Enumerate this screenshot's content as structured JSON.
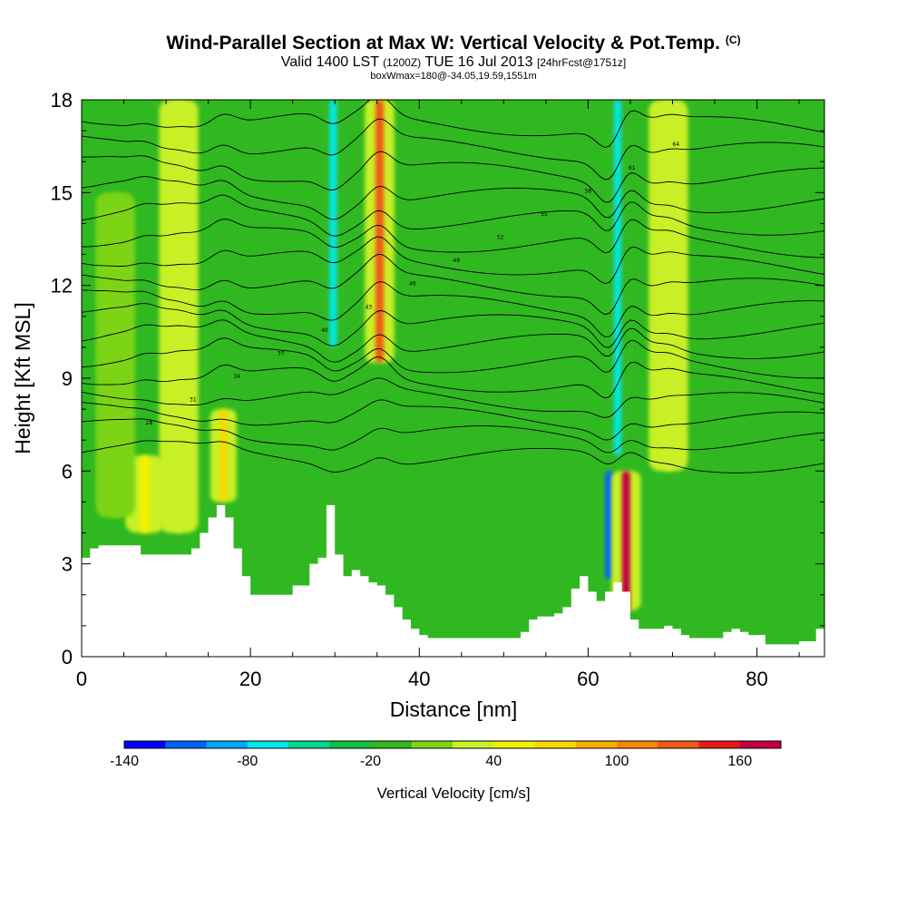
{
  "title": {
    "main": "Wind-Parallel Section at Max W: Vertical Velocity & Pot.Temp.",
    "copyright": "(C)",
    "valid_prefix": "Valid 1400 LST",
    "utc": "(1200Z)",
    "valid_date": "TUE 16 Jul 2013",
    "forecast": "[24hrFcst@1751z]",
    "box": "boxWmax=180@-34.05,19.59,1551m"
  },
  "chart_data": {
    "type": "heatmap",
    "xlabel": "Distance [nm]",
    "ylabel": "Height [Kft MSL]",
    "xlim": [
      0,
      88
    ],
    "ylim": [
      0,
      18
    ],
    "x_ticks": [
      0,
      20,
      40,
      60,
      80
    ],
    "y_ticks": [
      0,
      3,
      6,
      9,
      12,
      15,
      18
    ],
    "grid": false,
    "background_field": {
      "base_value": -10,
      "description_of_levels": "vertical velocity in cm/s, shaded by colorbar"
    },
    "updraft_columns": [
      {
        "x": 11.5,
        "z_bottom": 4.0,
        "z_top": 18,
        "w": 20
      },
      {
        "x": 7.5,
        "z_bottom": 4.0,
        "z_top": 6.5,
        "w": 40
      },
      {
        "x": 16.8,
        "z_bottom": 5.0,
        "z_top": 8.0,
        "w": 70
      },
      {
        "x": 29.8,
        "z_bottom": 10.0,
        "z_top": 18,
        "w": -80
      },
      {
        "x": 35.3,
        "z_bottom": 9.5,
        "z_top": 18,
        "w": 120
      },
      {
        "x": 62.5,
        "z_bottom": 2.5,
        "z_top": 6.0,
        "w": -120
      },
      {
        "x": 64.5,
        "z_bottom": 1.5,
        "z_top": 6.0,
        "w": 160
      },
      {
        "x": 63.5,
        "z_bottom": 6.5,
        "z_top": 18,
        "w": -70
      },
      {
        "x": 69.5,
        "z_bottom": 6.0,
        "z_top": 18,
        "w": 30
      },
      {
        "x": 4.0,
        "z_bottom": 4.5,
        "z_top": 15,
        "w": 10
      }
    ],
    "terrain_kft": {
      "x": [
        0,
        1,
        2,
        3,
        4,
        5,
        6,
        7,
        8,
        9,
        10,
        11,
        12,
        13,
        14,
        15,
        16,
        17,
        18,
        19,
        20,
        21,
        22,
        23,
        24,
        25,
        26,
        27,
        28,
        29,
        30,
        31,
        32,
        33,
        34,
        35,
        36,
        37,
        38,
        39,
        40,
        41,
        42,
        43,
        44,
        45,
        46,
        47,
        48,
        49,
        50,
        51,
        52,
        53,
        54,
        55,
        56,
        57,
        58,
        59,
        60,
        61,
        62,
        63,
        64,
        65,
        66,
        67,
        68,
        69,
        70,
        71,
        72,
        73,
        74,
        75,
        76,
        77,
        78,
        79,
        80,
        81,
        82,
        83,
        84,
        85,
        86,
        87,
        88
      ],
      "z": [
        3.2,
        3.5,
        3.6,
        3.6,
        3.6,
        3.6,
        3.6,
        3.3,
        3.3,
        3.3,
        3.3,
        3.3,
        3.3,
        3.5,
        4.0,
        4.5,
        4.9,
        4.5,
        3.5,
        2.6,
        2.0,
        2.0,
        2.0,
        2.0,
        2.0,
        2.3,
        2.3,
        3.0,
        3.2,
        4.9,
        3.3,
        2.6,
        2.8,
        2.6,
        2.4,
        2.3,
        2.0,
        1.6,
        1.2,
        0.9,
        0.7,
        0.6,
        0.6,
        0.6,
        0.6,
        0.6,
        0.6,
        0.6,
        0.6,
        0.6,
        0.6,
        0.6,
        0.8,
        1.2,
        1.3,
        1.3,
        1.4,
        1.6,
        2.2,
        2.6,
        2.1,
        1.8,
        2.1,
        2.4,
        2.1,
        1.2,
        0.9,
        0.9,
        0.9,
        1.0,
        0.9,
        0.7,
        0.6,
        0.6,
        0.6,
        0.6,
        0.8,
        0.9,
        0.8,
        0.7,
        0.7,
        0.4,
        0.4,
        0.4,
        0.4,
        0.5,
        0.5,
        0.9,
        1.0
      ]
    },
    "theta_contours": {
      "label_values": [
        "28",
        "31",
        "34",
        "37",
        "40",
        "43",
        "46",
        "49",
        "52",
        "55",
        "58",
        "61",
        "64"
      ],
      "series": [
        {
          "name": "",
          "level": 22,
          "anchor_kft": 6.6
        },
        {
          "name": "",
          "level": 24,
          "anchor_kft": 7.3
        },
        {
          "name": "",
          "level": 26,
          "anchor_kft": 7.9
        },
        {
          "name": "",
          "level": 28,
          "anchor_kft": 8.5
        },
        {
          "name": "",
          "level": 30,
          "anchor_kft": 9.1
        },
        {
          "name": "",
          "level": 32,
          "anchor_kft": 9.7
        },
        {
          "name": "",
          "level": 34,
          "anchor_kft": 10.3
        },
        {
          "name": "",
          "level": 36,
          "anchor_kft": 10.9
        },
        {
          "name": "",
          "level": 38,
          "anchor_kft": 11.5
        },
        {
          "name": "",
          "level": 40,
          "anchor_kft": 12.2
        },
        {
          "name": "",
          "level": 42,
          "anchor_kft": 12.9
        },
        {
          "name": "",
          "level": 44,
          "anchor_kft": 13.6
        },
        {
          "name": "",
          "level": 46,
          "anchor_kft": 14.3
        },
        {
          "name": "",
          "level": 48,
          "anchor_kft": 15.0
        },
        {
          "name": "",
          "level": 50,
          "anchor_kft": 15.8
        },
        {
          "name": "",
          "level": 52,
          "anchor_kft": 16.6
        },
        {
          "name": "",
          "level": 54,
          "anchor_kft": 17.4
        }
      ]
    },
    "colorbar": {
      "title": "Vertical Velocity [cm/s]",
      "levels": [
        -140,
        -120,
        -100,
        -80,
        -60,
        -40,
        -20,
        0,
        20,
        40,
        60,
        80,
        100,
        120,
        140,
        160,
        180
      ],
      "tick_labels": [
        "-140",
        "-80",
        "-20",
        "40",
        "100",
        "160"
      ],
      "tick_values": [
        -140,
        -80,
        -20,
        40,
        100,
        160
      ],
      "colors": [
        "#0000ff",
        "#0064ff",
        "#00a8ff",
        "#00e8e8",
        "#00d890",
        "#10c040",
        "#30b820",
        "#7cd414",
        "#c8f028",
        "#f0f000",
        "#f8d800",
        "#f8b000",
        "#f88800",
        "#f05818",
        "#e81818",
        "#c00040"
      ]
    }
  }
}
